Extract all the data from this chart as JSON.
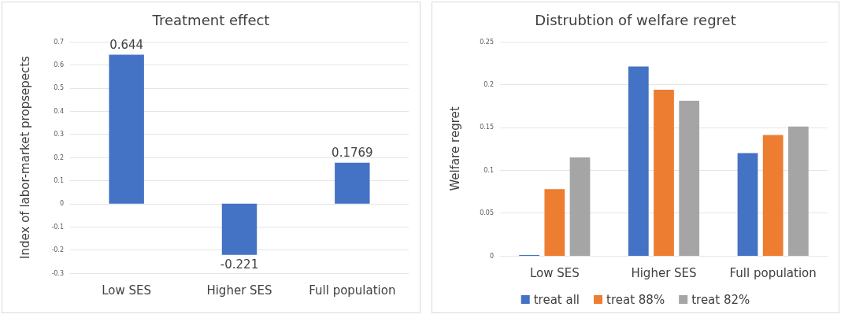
{
  "chart_data": [
    {
      "type": "bar",
      "title": "Treatment effect",
      "ylabel": "Index of labor-market propsepects",
      "categories": [
        "Low SES",
        "Higher SES",
        "Full population"
      ],
      "values": [
        0.644,
        -0.221,
        0.1769
      ],
      "color": "#4472c4",
      "data_labels": true,
      "ylim": [
        -0.3,
        0.7
      ],
      "yticks": [
        -0.3,
        -0.2,
        -0.1,
        0,
        0.1,
        0.2,
        0.3,
        0.4,
        0.5,
        0.6,
        0.7
      ],
      "grid": "y"
    },
    {
      "type": "bar",
      "title": "Distrubtion of welfare regret",
      "ylabel": "Welfare regret",
      "categories": [
        "Low SES",
        "Higher SES",
        "Full population"
      ],
      "series": [
        {
          "name": "treat all",
          "color": "#4472c4",
          "values": [
            0.001,
            0.221,
            0.12
          ]
        },
        {
          "name": "treat 88%",
          "color": "#ed7d31",
          "values": [
            0.078,
            0.194,
            0.141
          ]
        },
        {
          "name": "treat 82%",
          "color": "#a5a5a5",
          "values": [
            0.115,
            0.181,
            0.151
          ]
        }
      ],
      "ylim": [
        0,
        0.25
      ],
      "yticks": [
        0,
        0.05,
        0.1,
        0.15,
        0.2,
        0.25
      ],
      "grid": "y",
      "legend": "bottom"
    }
  ]
}
